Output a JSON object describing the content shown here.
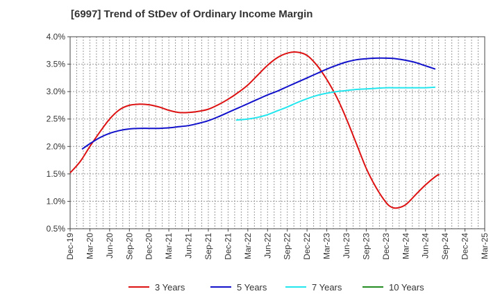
{
  "chart_data": {
    "type": "line",
    "title": "[6997]  Trend of StDev of Ordinary Income Margin",
    "x_labels": [
      "Dec-19",
      "Mar-20",
      "Jun-20",
      "Sep-20",
      "Dec-20",
      "Mar-21",
      "Jun-21",
      "Sep-21",
      "Dec-21",
      "Mar-22",
      "Jun-22",
      "Sep-22",
      "Dec-22",
      "Mar-23",
      "Jun-23",
      "Sep-23",
      "Dec-23",
      "Mar-24",
      "Jun-24",
      "Sep-24",
      "Dec-24",
      "Mar-25"
    ],
    "y_tick_labels": [
      "0.5%",
      "1.0%",
      "1.5%",
      "2.0%",
      "2.5%",
      "3.0%",
      "3.5%",
      "4.0%"
    ],
    "ylim": [
      0.5,
      4.0
    ],
    "y_unit": "%",
    "grid": true,
    "legend_position": "bottom",
    "series": [
      {
        "name": "3 Years",
        "color": "#dd1111",
        "points": [
          [
            0,
            1.52
          ],
          [
            0.5,
            1.72
          ],
          [
            1,
            2.0
          ],
          [
            1.5,
            2.26
          ],
          [
            2,
            2.5
          ],
          [
            2.5,
            2.67
          ],
          [
            3,
            2.75
          ],
          [
            3.5,
            2.77
          ],
          [
            4,
            2.76
          ],
          [
            4.5,
            2.72
          ],
          [
            5,
            2.66
          ],
          [
            5.5,
            2.62
          ],
          [
            6,
            2.62
          ],
          [
            6.5,
            2.64
          ],
          [
            7,
            2.68
          ],
          [
            7.5,
            2.76
          ],
          [
            8,
            2.86
          ],
          [
            8.5,
            2.98
          ],
          [
            9,
            3.12
          ],
          [
            9.5,
            3.3
          ],
          [
            10,
            3.48
          ],
          [
            10.5,
            3.62
          ],
          [
            11,
            3.7
          ],
          [
            11.5,
            3.72
          ],
          [
            12,
            3.66
          ],
          [
            12.5,
            3.48
          ],
          [
            13,
            3.22
          ],
          [
            13.5,
            2.9
          ],
          [
            14,
            2.5
          ],
          [
            14.5,
            2.05
          ],
          [
            15,
            1.6
          ],
          [
            15.5,
            1.25
          ],
          [
            16,
            0.98
          ],
          [
            16.3,
            0.89
          ],
          [
            16.6,
            0.88
          ],
          [
            17,
            0.94
          ],
          [
            17.5,
            1.12
          ],
          [
            18,
            1.3
          ],
          [
            18.5,
            1.45
          ],
          [
            18.7,
            1.49
          ]
        ]
      },
      {
        "name": "5 Years",
        "color": "#1111cc",
        "points": [
          [
            0.6,
            1.95
          ],
          [
            1,
            2.05
          ],
          [
            1.5,
            2.16
          ],
          [
            2,
            2.24
          ],
          [
            2.5,
            2.29
          ],
          [
            3,
            2.32
          ],
          [
            3.5,
            2.33
          ],
          [
            4,
            2.33
          ],
          [
            4.5,
            2.33
          ],
          [
            5,
            2.34
          ],
          [
            5.5,
            2.36
          ],
          [
            6,
            2.38
          ],
          [
            6.5,
            2.42
          ],
          [
            7,
            2.47
          ],
          [
            7.5,
            2.54
          ],
          [
            8,
            2.62
          ],
          [
            8.5,
            2.7
          ],
          [
            9,
            2.78
          ],
          [
            9.5,
            2.86
          ],
          [
            10,
            2.94
          ],
          [
            10.5,
            3.01
          ],
          [
            11,
            3.09
          ],
          [
            11.5,
            3.17
          ],
          [
            12,
            3.25
          ],
          [
            12.5,
            3.33
          ],
          [
            13,
            3.41
          ],
          [
            13.5,
            3.48
          ],
          [
            14,
            3.54
          ],
          [
            14.5,
            3.58
          ],
          [
            15,
            3.6
          ],
          [
            15.5,
            3.61
          ],
          [
            16,
            3.61
          ],
          [
            16.5,
            3.6
          ],
          [
            17,
            3.57
          ],
          [
            17.5,
            3.53
          ],
          [
            18,
            3.47
          ],
          [
            18.5,
            3.41
          ]
        ]
      },
      {
        "name": "7 Years",
        "color": "#22e6ee",
        "points": [
          [
            8.4,
            2.48
          ],
          [
            9,
            2.5
          ],
          [
            9.5,
            2.53
          ],
          [
            10,
            2.58
          ],
          [
            10.5,
            2.65
          ],
          [
            11,
            2.72
          ],
          [
            11.5,
            2.8
          ],
          [
            12,
            2.87
          ],
          [
            12.5,
            2.93
          ],
          [
            13,
            2.97
          ],
          [
            13.5,
            3.0
          ],
          [
            14,
            3.02
          ],
          [
            14.5,
            3.04
          ],
          [
            15,
            3.05
          ],
          [
            15.5,
            3.06
          ],
          [
            16,
            3.07
          ],
          [
            16.5,
            3.07
          ],
          [
            17,
            3.07
          ],
          [
            17.5,
            3.07
          ],
          [
            18,
            3.07
          ],
          [
            18.5,
            3.08
          ]
        ]
      },
      {
        "name": "10 Years",
        "color": "#228B22",
        "points": []
      }
    ]
  }
}
